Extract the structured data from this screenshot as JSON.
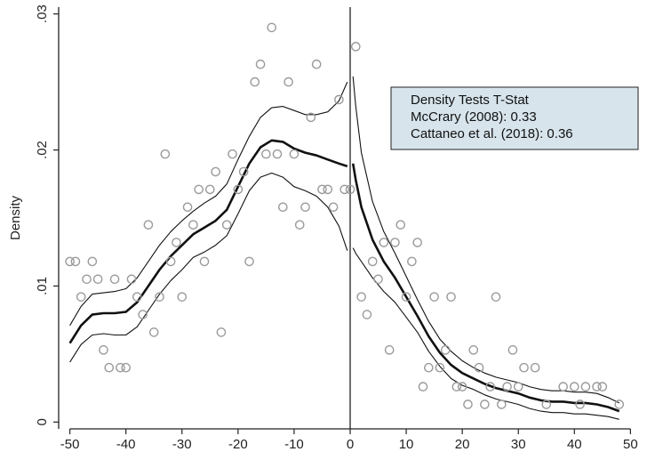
{
  "chart_data": {
    "type": "scatter",
    "title": "",
    "xlabel": "",
    "ylabel": "Density",
    "xlim": [
      -52,
      52
    ],
    "ylim": [
      -0.0005,
      0.0305
    ],
    "x_ticks": [
      -50,
      -40,
      -30,
      -20,
      -10,
      0,
      10,
      20,
      30,
      40,
      50
    ],
    "y_ticks": [
      0,
      0.01,
      0.02,
      0.03
    ],
    "x_tick_labels": [
      "-50",
      "-40",
      "-30",
      "-20",
      "-10",
      "0",
      "10",
      "20",
      "30",
      "40",
      "50"
    ],
    "y_tick_labels": [
      "0",
      ".01",
      ".02",
      ".03"
    ],
    "grid": false,
    "cutoff": 0,
    "legend_box": {
      "placement": "top-right",
      "lines": [
        "Density Tests T-Stat",
        "McCrary (2008): 0.33",
        "Cattaneo et al. (2018): 0.36"
      ]
    },
    "series": [
      {
        "kind": "points",
        "points": [
          [
            -50,
            0.0118
          ],
          [
            -49,
            0.0118
          ],
          [
            -48,
            0.0092
          ],
          [
            -47,
            0.0105
          ],
          [
            -46,
            0.0118
          ],
          [
            -45,
            0.0105
          ],
          [
            -44,
            0.0053
          ],
          [
            -43,
            0.004
          ],
          [
            -42,
            0.0105
          ],
          [
            -41,
            0.004
          ],
          [
            -40,
            0.004
          ],
          [
            -39,
            0.0105
          ],
          [
            -38,
            0.0092
          ],
          [
            -37,
            0.0079
          ],
          [
            -36,
            0.0145
          ],
          [
            -35,
            0.0066
          ],
          [
            -34,
            0.0092
          ],
          [
            -33,
            0.0197
          ],
          [
            -32,
            0.0118
          ],
          [
            -31,
            0.0132
          ],
          [
            -30,
            0.0092
          ],
          [
            -29,
            0.0158
          ],
          [
            -28,
            0.0145
          ],
          [
            -27,
            0.0171
          ],
          [
            -26,
            0.0118
          ],
          [
            -25,
            0.0171
          ],
          [
            -24,
            0.0184
          ],
          [
            -23,
            0.0066
          ],
          [
            -22,
            0.0145
          ],
          [
            -21,
            0.0197
          ],
          [
            -20,
            0.0171
          ],
          [
            -19,
            0.0184
          ],
          [
            -18,
            0.0118
          ],
          [
            -17,
            0.025
          ],
          [
            -16,
            0.0263
          ],
          [
            -15,
            0.0197
          ],
          [
            -14,
            0.029
          ],
          [
            -13,
            0.0197
          ],
          [
            -12,
            0.0158
          ],
          [
            -11,
            0.025
          ],
          [
            -10,
            0.0197
          ],
          [
            -9,
            0.0145
          ],
          [
            -8,
            0.0158
          ],
          [
            -7,
            0.0224
          ],
          [
            -6,
            0.0263
          ],
          [
            -5,
            0.0171
          ],
          [
            -4,
            0.0171
          ],
          [
            -3,
            0.0158
          ],
          [
            -2,
            0.0237
          ],
          [
            -1,
            0.0171
          ],
          [
            0,
            0.0171
          ],
          [
            1,
            0.0276
          ],
          [
            2,
            0.0092
          ],
          [
            3,
            0.0079
          ],
          [
            4,
            0.0118
          ],
          [
            5,
            0.0105
          ],
          [
            6,
            0.0132
          ],
          [
            7,
            0.0053
          ],
          [
            8,
            0.0132
          ],
          [
            9,
            0.0145
          ],
          [
            10,
            0.0092
          ],
          [
            11,
            0.0118
          ],
          [
            12,
            0.0132
          ],
          [
            13,
            0.0026
          ],
          [
            14,
            0.004
          ],
          [
            15,
            0.0092
          ],
          [
            16,
            0.004
          ],
          [
            17,
            0.0053
          ],
          [
            18,
            0.0092
          ],
          [
            19,
            0.0026
          ],
          [
            20,
            0.0026
          ],
          [
            21,
            0.0013
          ],
          [
            22,
            0.0053
          ],
          [
            23,
            0.004
          ],
          [
            24,
            0.0013
          ],
          [
            25,
            0.0026
          ],
          [
            26,
            0.0092
          ],
          [
            27,
            0.0013
          ],
          [
            28,
            0.0026
          ],
          [
            29,
            0.0053
          ],
          [
            30,
            0.0026
          ],
          [
            31,
            0.004
          ],
          [
            33,
            0.004
          ],
          [
            35,
            0.0013
          ],
          [
            38,
            0.0026
          ],
          [
            40,
            0.0026
          ],
          [
            41,
            0.0013
          ],
          [
            42,
            0.0026
          ],
          [
            44,
            0.0026
          ],
          [
            45,
            0.0026
          ],
          [
            48,
            0.0013
          ]
        ]
      },
      {
        "kind": "estimate",
        "left": [
          [
            -50,
            0.0058
          ],
          [
            -48,
            0.0071
          ],
          [
            -46,
            0.0079
          ],
          [
            -44,
            0.008
          ],
          [
            -42,
            0.008
          ],
          [
            -40,
            0.0081
          ],
          [
            -38,
            0.0088
          ],
          [
            -36,
            0.01
          ],
          [
            -34,
            0.0112
          ],
          [
            -32,
            0.0122
          ],
          [
            -30,
            0.013
          ],
          [
            -28,
            0.0138
          ],
          [
            -26,
            0.0143
          ],
          [
            -24,
            0.0148
          ],
          [
            -22,
            0.0156
          ],
          [
            -20,
            0.0173
          ],
          [
            -18,
            0.019
          ],
          [
            -16,
            0.0202
          ],
          [
            -14,
            0.0207
          ],
          [
            -12,
            0.0206
          ],
          [
            -10,
            0.0201
          ],
          [
            -8,
            0.0198
          ],
          [
            -6,
            0.0196
          ],
          [
            -4,
            0.0193
          ],
          [
            -2,
            0.019
          ],
          [
            -0.5,
            0.0188
          ]
        ],
        "right": [
          [
            0.5,
            0.019
          ],
          [
            1,
            0.0178
          ],
          [
            2,
            0.0158
          ],
          [
            4,
            0.0134
          ],
          [
            6,
            0.0118
          ],
          [
            8,
            0.0106
          ],
          [
            10,
            0.0092
          ],
          [
            12,
            0.0078
          ],
          [
            14,
            0.0063
          ],
          [
            16,
            0.0051
          ],
          [
            18,
            0.0042
          ],
          [
            20,
            0.0036
          ],
          [
            22,
            0.0032
          ],
          [
            24,
            0.0028
          ],
          [
            26,
            0.0025
          ],
          [
            28,
            0.0023
          ],
          [
            30,
            0.0021
          ],
          [
            32,
            0.0018
          ],
          [
            34,
            0.0016
          ],
          [
            36,
            0.0015
          ],
          [
            38,
            0.0015
          ],
          [
            40,
            0.0014
          ],
          [
            42,
            0.0014
          ],
          [
            44,
            0.0013
          ],
          [
            46,
            0.0011
          ],
          [
            48,
            0.0008
          ]
        ]
      },
      {
        "kind": "ci_upper",
        "left": [
          [
            -50,
            0.0071
          ],
          [
            -48,
            0.0085
          ],
          [
            -46,
            0.0094
          ],
          [
            -44,
            0.0095
          ],
          [
            -42,
            0.0096
          ],
          [
            -40,
            0.0098
          ],
          [
            -38,
            0.0106
          ],
          [
            -36,
            0.0118
          ],
          [
            -34,
            0.013
          ],
          [
            -32,
            0.014
          ],
          [
            -30,
            0.0148
          ],
          [
            -28,
            0.0155
          ],
          [
            -26,
            0.0161
          ],
          [
            -24,
            0.0166
          ],
          [
            -22,
            0.0175
          ],
          [
            -20,
            0.0193
          ],
          [
            -18,
            0.021
          ],
          [
            -16,
            0.0224
          ],
          [
            -14,
            0.0231
          ],
          [
            -12,
            0.0232
          ],
          [
            -10,
            0.0229
          ],
          [
            -8,
            0.0226
          ],
          [
            -6,
            0.0226
          ],
          [
            -4,
            0.0228
          ],
          [
            -2,
            0.0236
          ],
          [
            -0.5,
            0.025
          ]
        ],
        "right": [
          [
            0.5,
            0.0254
          ],
          [
            1,
            0.0232
          ],
          [
            2,
            0.0198
          ],
          [
            4,
            0.0162
          ],
          [
            6,
            0.014
          ],
          [
            8,
            0.0124
          ],
          [
            10,
            0.0107
          ],
          [
            12,
            0.009
          ],
          [
            14,
            0.0074
          ],
          [
            16,
            0.0061
          ],
          [
            18,
            0.0052
          ],
          [
            20,
            0.0045
          ],
          [
            22,
            0.004
          ],
          [
            24,
            0.0036
          ],
          [
            26,
            0.0033
          ],
          [
            28,
            0.0031
          ],
          [
            30,
            0.0029
          ],
          [
            32,
            0.0026
          ],
          [
            34,
            0.0024
          ],
          [
            36,
            0.0023
          ],
          [
            38,
            0.0023
          ],
          [
            40,
            0.0022
          ],
          [
            42,
            0.0022
          ],
          [
            44,
            0.0021
          ],
          [
            46,
            0.0018
          ],
          [
            48,
            0.0014
          ]
        ]
      },
      {
        "kind": "ci_lower",
        "left": [
          [
            -50,
            0.0044
          ],
          [
            -48,
            0.0057
          ],
          [
            -46,
            0.0064
          ],
          [
            -44,
            0.0065
          ],
          [
            -42,
            0.0064
          ],
          [
            -40,
            0.0064
          ],
          [
            -38,
            0.007
          ],
          [
            -36,
            0.0082
          ],
          [
            -34,
            0.0094
          ],
          [
            -32,
            0.0104
          ],
          [
            -30,
            0.0112
          ],
          [
            -28,
            0.0121
          ],
          [
            -26,
            0.0125
          ],
          [
            -24,
            0.013
          ],
          [
            -22,
            0.0137
          ],
          [
            -20,
            0.0153
          ],
          [
            -18,
            0.017
          ],
          [
            -16,
            0.018
          ],
          [
            -14,
            0.0183
          ],
          [
            -12,
            0.018
          ],
          [
            -10,
            0.0173
          ],
          [
            -8,
            0.017
          ],
          [
            -6,
            0.0166
          ],
          [
            -4,
            0.0158
          ],
          [
            -2,
            0.0144
          ],
          [
            -0.5,
            0.0126
          ]
        ],
        "right": [
          [
            0.5,
            0.0128
          ],
          [
            1,
            0.0124
          ],
          [
            2,
            0.0118
          ],
          [
            4,
            0.0106
          ],
          [
            6,
            0.0096
          ],
          [
            8,
            0.0088
          ],
          [
            10,
            0.0077
          ],
          [
            12,
            0.0066
          ],
          [
            14,
            0.0052
          ],
          [
            16,
            0.0041
          ],
          [
            18,
            0.0032
          ],
          [
            20,
            0.0027
          ],
          [
            22,
            0.0024
          ],
          [
            24,
            0.002
          ],
          [
            26,
            0.0017
          ],
          [
            28,
            0.0015
          ],
          [
            30,
            0.0013
          ],
          [
            32,
            0.001
          ],
          [
            34,
            0.0008
          ],
          [
            36,
            0.0007
          ],
          [
            38,
            0.0007
          ],
          [
            40,
            0.0006
          ],
          [
            42,
            0.0006
          ],
          [
            44,
            0.0005
          ],
          [
            46,
            0.0004
          ],
          [
            48,
            0.0002
          ]
        ]
      }
    ],
    "colors": {
      "points": "#9a9a9a",
      "estimate": "#111111",
      "ci": "#111111",
      "axis": "#222222",
      "legend_fill": "#d7e4ec",
      "legend_stroke": "#222222"
    }
  }
}
